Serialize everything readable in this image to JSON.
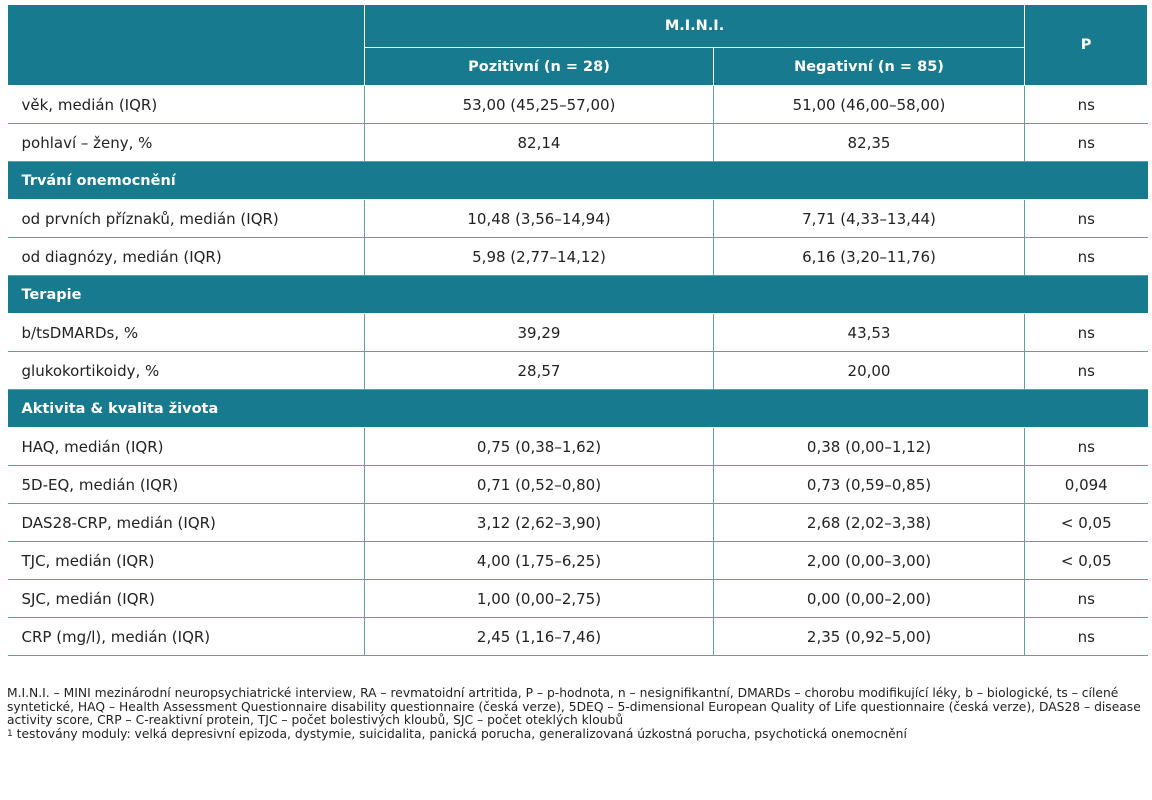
{
  "header": {
    "group_label": "M.I.N.I.",
    "p_label": "P",
    "positive_label": "Pozitivní (n = 28)",
    "negative_label": "Negativní (n = 85)"
  },
  "rows": [
    {
      "label": "věk, medián (IQR)",
      "pos": "53,00 (45,25–57,00)",
      "neg": "51,00 (46,00–58,00)",
      "p": "ns"
    },
    {
      "label": "pohlaví – ženy, %",
      "pos": "82,14",
      "neg": "82,35",
      "p": "ns"
    },
    {
      "section": "Trvání onemocnění"
    },
    {
      "label": "od prvních příznaků, medián (IQR)",
      "pos": "10,48 (3,56–14,94)",
      "neg": "7,71 (4,33–13,44)",
      "p": "ns"
    },
    {
      "label": "od diagnózy, medián (IQR)",
      "pos": "5,98 (2,77–14,12)",
      "neg": "6,16 (3,20–11,76)",
      "p": "ns"
    },
    {
      "section": "Terapie"
    },
    {
      "label": "b/tsDMARDs, %",
      "pos": "39,29",
      "neg": "43,53",
      "p": "ns"
    },
    {
      "label": "glukokortikoidy, %",
      "pos": "28,57",
      "neg": "20,00",
      "p": "ns"
    },
    {
      "section": "Aktivita & kvalita života"
    },
    {
      "label": "HAQ, medián (IQR)",
      "pos": "0,75 (0,38–1,62)",
      "neg": "0,38 (0,00–1,12)",
      "p": "ns"
    },
    {
      "label": "5D-EQ, medián (IQR)",
      "pos": "0,71 (0,52–0,80)",
      "neg": "0,73 (0,59–0,85)",
      "p": "0,094"
    },
    {
      "label": "DAS28-CRP, medián (IQR)",
      "pos": "3,12 (2,62–3,90)",
      "neg": "2,68 (2,02–3,38)",
      "p": "< 0,05"
    },
    {
      "label": "TJC, medián (IQR)",
      "pos": "4,00 (1,75–6,25)",
      "neg": "2,00 (0,00–3,00)",
      "p": "< 0,05"
    },
    {
      "label": "SJC, medián (IQR)",
      "pos": "1,00 (0,00–2,75)",
      "neg": "0,00 (0,00–2,00)",
      "p": "ns"
    },
    {
      "label": "CRP (mg/l), medián (IQR)",
      "pos": "2,45 (1,16–7,46)",
      "neg": "2,35 (0,92–5,00)",
      "p": "ns"
    }
  ],
  "footnote": {
    "abbreviations": "M.I.N.I. – MINI mezinárodní neuropsychiatrické interview, RA – revmatoidní artritida, P – p-hodnota, n – nesignifikantní, DMARDs – chorobu modifikující léky, b – biologické, ts – cílené syntetické, HAQ – Health Assessment Questionnaire disability questionnaire (česká verze), 5DEQ – 5-dimensional European Quality of Life questionnaire (česká verze), DAS28 – disease activity score, CRP – C-reaktivní protein, TJC – počet bolestivých kloubů, SJC – počet oteklých kloubů",
    "marker": "1",
    "modules": "testovány moduly: velká depresivní epizoda, dystymie, suicidalita, panická porucha, generalizovaná úzkostná porucha, psychotická onemocnění"
  },
  "colors": {
    "header_bg": "#177a8e",
    "rule": "#5b9faa"
  }
}
